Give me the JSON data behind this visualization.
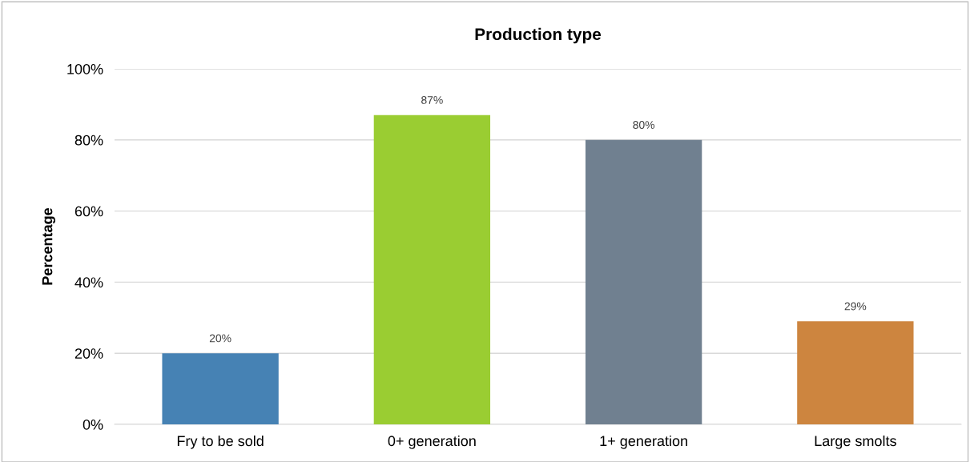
{
  "chart_data": {
    "type": "bar",
    "title": "Production type",
    "ylabel": "Percentage",
    "categories": [
      "Fry to be sold",
      "0+ generation",
      "1+ generation",
      "Large smolts"
    ],
    "values": [
      20,
      87,
      80,
      29
    ],
    "colors": [
      "#4682b4",
      "#9acd32",
      "#708090",
      "#cd853f"
    ],
    "value_labels": [
      "20%",
      "87%",
      "80%",
      "29%"
    ],
    "ylim": [
      0,
      100
    ],
    "yticks": [
      {
        "value": 0,
        "label": "0%"
      },
      {
        "value": 20,
        "label": "20%"
      },
      {
        "value": 40,
        "label": "40%"
      },
      {
        "value": 60,
        "label": "60%"
      },
      {
        "value": 80,
        "label": "80%"
      },
      {
        "value": 100,
        "label": "100%"
      }
    ],
    "grid": "y",
    "legend": false
  }
}
